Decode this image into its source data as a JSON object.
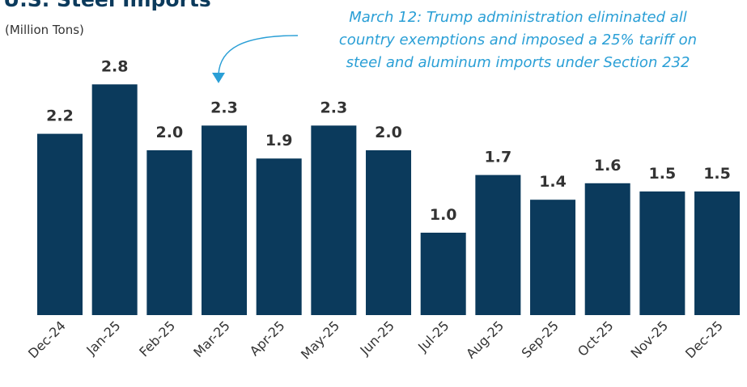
{
  "chart_data": {
    "type": "bar",
    "title": "U.S. Steel Imports",
    "subtitle": "(Million Tons)",
    "annotation": [
      "March 12: Trump administration eliminated all",
      "country exemptions and imposed a 25% tariff on",
      "steel and aluminum imports under Section 232"
    ],
    "categories": [
      "Dec-24",
      "Jan-25",
      "Feb-25",
      "Mar-25",
      "Apr-25",
      "May-25",
      "Jun-25",
      "Jul-25",
      "Aug-25",
      "Sep-25",
      "Oct-25",
      "Nov-25",
      "Dec-25"
    ],
    "values": [
      2.2,
      2.8,
      2.0,
      2.3,
      1.9,
      2.3,
      2.0,
      1.0,
      1.7,
      1.4,
      1.6,
      1.5,
      1.5
    ],
    "value_labels": [
      "2.2",
      "2.8",
      "2.0",
      "2.3",
      "1.9",
      "2.3",
      "2.0",
      "1.0",
      "1.7",
      "1.4",
      "1.6",
      "1.5",
      "1.5"
    ],
    "color": "#0b3a5c"
  }
}
